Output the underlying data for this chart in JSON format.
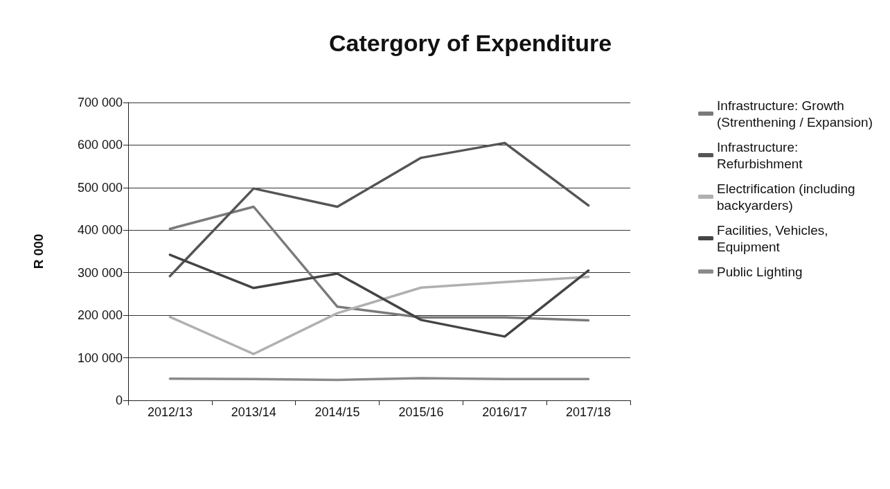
{
  "chart_data": {
    "type": "line",
    "title": "Catergory of Expenditure",
    "ylabel": "R 000",
    "categories": [
      "2012/13",
      "2013/14",
      "2014/15",
      "2015/16",
      "2016/17",
      "2017/18"
    ],
    "series": [
      {
        "name": "Infrastructure: Growth (Strenthening / Expansion)",
        "color": "#7a7a7a",
        "values": [
          403000,
          455000,
          220000,
          195000,
          195000,
          188000
        ]
      },
      {
        "name": "Infrastructure: Refurbishment",
        "color": "#555555",
        "values": [
          292000,
          498000,
          455000,
          570000,
          605000,
          458000
        ]
      },
      {
        "name": "Electrification (including backyarders)",
        "color": "#b0b0b0",
        "values": [
          196000,
          109000,
          205000,
          265000,
          278000,
          290000
        ]
      },
      {
        "name": "Facilities, Vehicles, Equipment",
        "color": "#444444",
        "values": [
          342000,
          264000,
          298000,
          189000,
          150000,
          305000
        ]
      },
      {
        "name": "Public Lighting",
        "color": "#8a8a8a",
        "values": [
          51000,
          50000,
          48000,
          52000,
          50000,
          50000
        ]
      }
    ],
    "ylim": [
      0,
      700000
    ],
    "yticks": [
      0,
      100000,
      200000,
      300000,
      400000,
      500000,
      600000,
      700000
    ],
    "grid": "y",
    "legend": "right",
    "marker": "none",
    "line_style": "solid"
  }
}
